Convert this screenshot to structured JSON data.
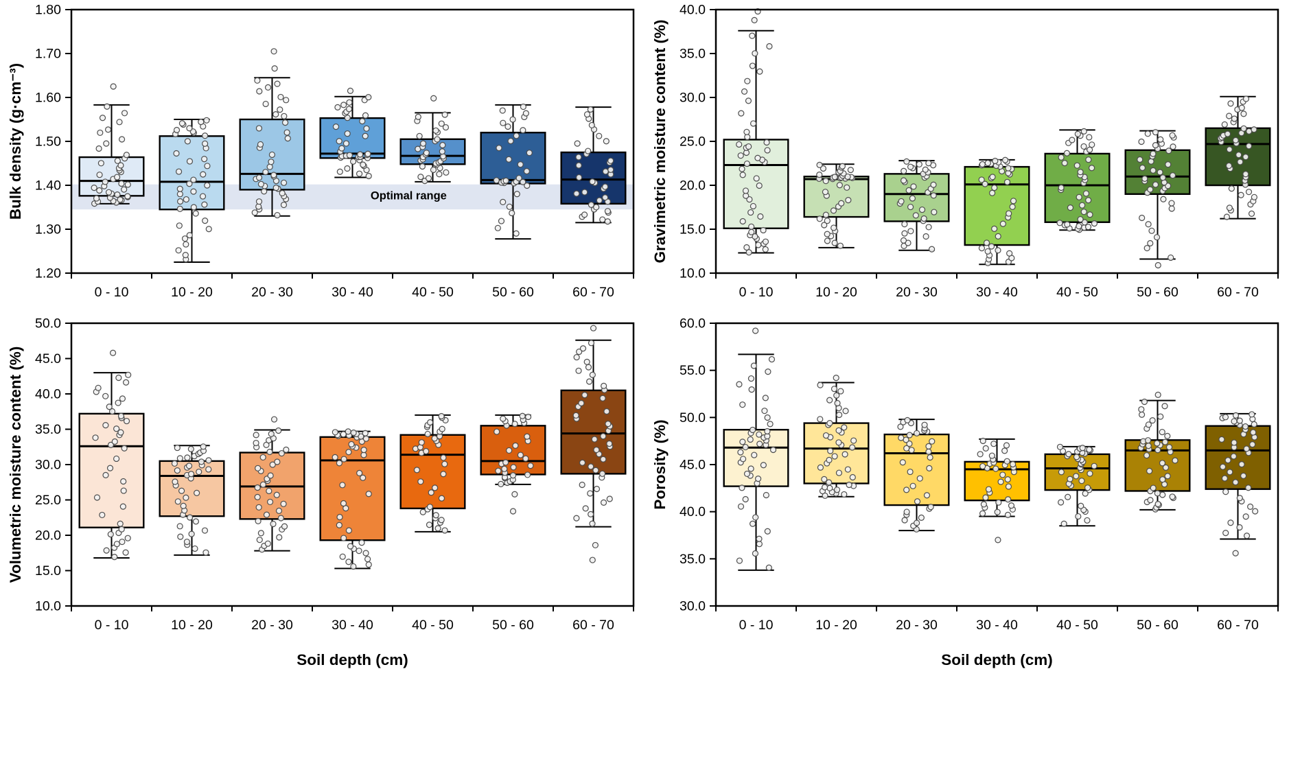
{
  "page": {
    "background": "#ffffff"
  },
  "chart_data": [
    {
      "id": "bulk-density",
      "type": "boxplot",
      "ylabel": "Bulk density (g·cm⁻³)",
      "xlabel": "",
      "ylim": [
        1.2,
        1.8
      ],
      "ytick_step": 0.1,
      "ytick_decimals": 2,
      "grid": false,
      "categories": [
        "0 - 10",
        "10 - 20",
        "20 - 30",
        "30 - 40",
        "40 - 50",
        "50 - 60",
        "60 - 70"
      ],
      "colors": [
        "#dfeaf6",
        "#badaef",
        "#9cc7e6",
        "#5fa0d8",
        "#5590cb",
        "#2d5e96",
        "#16356b"
      ],
      "annotation": {
        "label": "Optimal range",
        "band": [
          1.345,
          1.402
        ],
        "color": "#dbe2ef",
        "label_slot": 4.2,
        "label_y": 1.368
      },
      "boxes": [
        {
          "low": 1.358,
          "q1": 1.376,
          "med": 1.41,
          "q3": 1.464,
          "high": 1.583,
          "outliers": [
            1.625
          ],
          "n": 40
        },
        {
          "low": 1.225,
          "q1": 1.345,
          "med": 1.408,
          "q3": 1.512,
          "high": 1.55,
          "outliers": [],
          "n": 42
        },
        {
          "low": 1.33,
          "q1": 1.39,
          "med": 1.426,
          "q3": 1.55,
          "high": 1.645,
          "outliers": [
            1.666,
            1.705
          ],
          "n": 40
        },
        {
          "low": 1.418,
          "q1": 1.462,
          "med": 1.472,
          "q3": 1.553,
          "high": 1.602,
          "outliers": [
            1.615
          ],
          "n": 38
        },
        {
          "low": 1.408,
          "q1": 1.448,
          "med": 1.467,
          "q3": 1.505,
          "high": 1.565,
          "outliers": [
            1.598
          ],
          "n": 34
        },
        {
          "low": 1.278,
          "q1": 1.404,
          "med": 1.412,
          "q3": 1.52,
          "high": 1.583,
          "outliers": [],
          "n": 32
        },
        {
          "low": 1.315,
          "q1": 1.358,
          "med": 1.413,
          "q3": 1.475,
          "high": 1.578,
          "outliers": [],
          "n": 36
        }
      ]
    },
    {
      "id": "gravimetric-moisture",
      "type": "boxplot",
      "ylabel": "Gravimetric moisture content (%)",
      "xlabel": "",
      "ylim": [
        10.0,
        40.0
      ],
      "ytick_step": 5.0,
      "ytick_decimals": 1,
      "grid": false,
      "categories": [
        "0 - 10",
        "10 - 20",
        "20 - 30",
        "30 - 40",
        "40 - 50",
        "50 - 60",
        "60 - 70"
      ],
      "colors": [
        "#e1efdc",
        "#c6e0b4",
        "#a9d18e",
        "#92d050",
        "#70ad47",
        "#538135",
        "#375623"
      ],
      "boxes": [
        {
          "low": 12.3,
          "q1": 15.1,
          "med": 22.3,
          "q3": 25.2,
          "high": 37.6,
          "outliers": [
            38.8,
            39.8
          ],
          "n": 46
        },
        {
          "low": 12.9,
          "q1": 16.4,
          "med": 20.7,
          "q3": 21.0,
          "high": 22.4,
          "outliers": [],
          "n": 40
        },
        {
          "low": 12.6,
          "q1": 15.9,
          "med": 19.0,
          "q3": 21.3,
          "high": 22.8,
          "outliers": [],
          "n": 38
        },
        {
          "low": 11.0,
          "q1": 13.2,
          "med": 20.1,
          "q3": 22.1,
          "high": 22.9,
          "outliers": [],
          "n": 40
        },
        {
          "low": 14.9,
          "q1": 15.8,
          "med": 20.0,
          "q3": 23.6,
          "high": 26.3,
          "outliers": [],
          "n": 42
        },
        {
          "low": 11.6,
          "q1": 19.0,
          "med": 21.0,
          "q3": 24.0,
          "high": 26.2,
          "outliers": [
            10.9
          ],
          "n": 40
        },
        {
          "low": 16.2,
          "q1": 20.0,
          "med": 24.7,
          "q3": 26.5,
          "high": 30.1,
          "outliers": [],
          "n": 42
        }
      ]
    },
    {
      "id": "volumetric-moisture",
      "type": "boxplot",
      "ylabel": "Volumetric moisture content (%)",
      "xlabel": "Soil depth (cm)",
      "ylim": [
        10.0,
        50.0
      ],
      "ytick_step": 5.0,
      "ytick_decimals": 1,
      "grid": false,
      "categories": [
        "0 - 10",
        "10 - 20",
        "20 - 30",
        "30 - 40",
        "40 - 50",
        "50 - 60",
        "60 - 70"
      ],
      "colors": [
        "#fbe5d6",
        "#f6c7a2",
        "#f1a36c",
        "#ee8438",
        "#e8690f",
        "#d95f0e",
        "#8a4513"
      ],
      "boxes": [
        {
          "low": 16.8,
          "q1": 21.1,
          "med": 32.6,
          "q3": 37.2,
          "high": 43.0,
          "outliers": [
            45.8
          ],
          "n": 40
        },
        {
          "low": 17.2,
          "q1": 22.7,
          "med": 28.4,
          "q3": 30.5,
          "high": 32.7,
          "outliers": [],
          "n": 40
        },
        {
          "low": 17.8,
          "q1": 22.3,
          "med": 26.9,
          "q3": 31.7,
          "high": 34.9,
          "outliers": [
            36.4
          ],
          "n": 40
        },
        {
          "low": 15.3,
          "q1": 19.3,
          "med": 30.6,
          "q3": 33.9,
          "high": 34.7,
          "outliers": [],
          "n": 42
        },
        {
          "low": 20.5,
          "q1": 23.8,
          "med": 31.4,
          "q3": 34.2,
          "high": 37.0,
          "outliers": [],
          "n": 36
        },
        {
          "low": 27.2,
          "q1": 28.6,
          "med": 30.5,
          "q3": 35.5,
          "high": 37.0,
          "outliers": [
            23.4,
            25.8
          ],
          "n": 30
        },
        {
          "low": 21.2,
          "q1": 28.7,
          "med": 34.4,
          "q3": 40.5,
          "high": 47.6,
          "outliers": [
            16.5,
            18.6,
            49.3
          ],
          "n": 42
        }
      ]
    },
    {
      "id": "porosity",
      "type": "boxplot",
      "ylabel": "Porosity (%)",
      "xlabel": "Soil depth (cm)",
      "ylim": [
        30.0,
        60.0
      ],
      "ytick_step": 5.0,
      "ytick_decimals": 1,
      "grid": false,
      "categories": [
        "0 - 10",
        "10 - 20",
        "20 - 30",
        "30 - 40",
        "40 - 50",
        "50 - 60",
        "60 - 70"
      ],
      "colors": [
        "#fdf2d0",
        "#ffe699",
        "#ffd966",
        "#ffc000",
        "#c79b08",
        "#aa8205",
        "#7f6000"
      ],
      "boxes": [
        {
          "low": 33.8,
          "q1": 42.7,
          "med": 46.8,
          "q3": 48.7,
          "high": 56.7,
          "outliers": [
            59.2
          ],
          "n": 46
        },
        {
          "low": 41.6,
          "q1": 43.0,
          "med": 46.7,
          "q3": 49.4,
          "high": 53.7,
          "outliers": [
            54.2
          ],
          "n": 42
        },
        {
          "low": 38.0,
          "q1": 40.7,
          "med": 46.2,
          "q3": 48.2,
          "high": 49.8,
          "outliers": [],
          "n": 36
        },
        {
          "low": 39.5,
          "q1": 41.2,
          "med": 44.5,
          "q3": 45.3,
          "high": 47.7,
          "outliers": [
            37.0
          ],
          "n": 34
        },
        {
          "low": 38.5,
          "q1": 42.3,
          "med": 44.6,
          "q3": 46.1,
          "high": 46.9,
          "outliers": [],
          "n": 38
        },
        {
          "low": 40.2,
          "q1": 42.2,
          "med": 46.5,
          "q3": 47.6,
          "high": 51.8,
          "outliers": [
            52.4
          ],
          "n": 42
        },
        {
          "low": 37.1,
          "q1": 42.4,
          "med": 46.5,
          "q3": 49.1,
          "high": 50.4,
          "outliers": [
            35.6
          ],
          "n": 40
        }
      ]
    }
  ]
}
